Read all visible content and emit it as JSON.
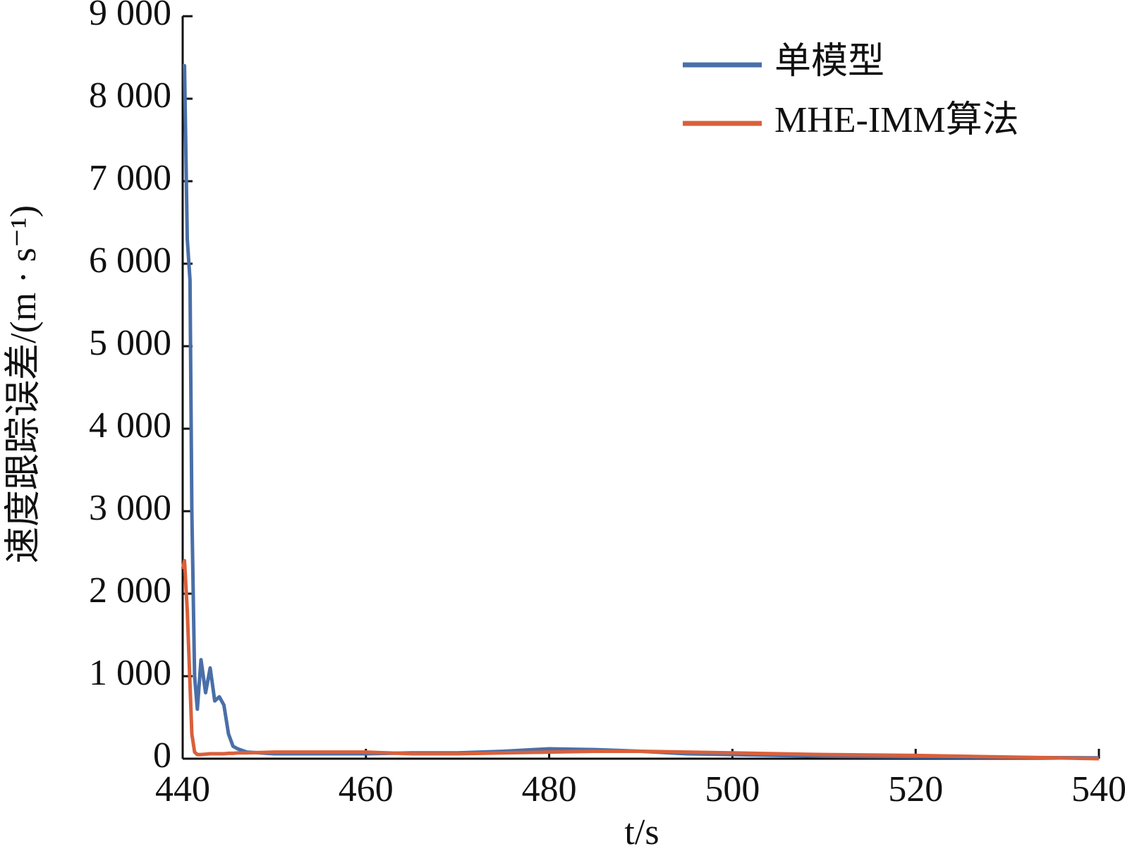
{
  "chart_data": {
    "type": "line",
    "x_label": "t/s",
    "y_label": "速度跟踪误差/(m · s⁻¹)",
    "x": [
      440,
      440.2,
      440.5,
      440.8,
      441,
      441.3,
      441.6,
      442,
      442.5,
      443,
      443.5,
      444,
      444.5,
      445,
      445.5,
      446,
      447,
      450,
      455,
      460,
      465,
      470,
      475,
      480,
      485,
      490,
      495,
      500,
      505,
      510,
      520,
      530,
      540
    ],
    "series": [
      {
        "name": "单模型",
        "color": "#4a6fa8",
        "values": [
          8400,
          8400,
          6300,
          5800,
          3000,
          1000,
          600,
          1200,
          800,
          1100,
          700,
          750,
          650,
          300,
          150,
          120,
          80,
          60,
          60,
          60,
          70,
          70,
          90,
          120,
          110,
          90,
          60,
          50,
          40,
          30,
          20,
          15,
          10
        ]
      },
      {
        "name": "MHE-IMM算法",
        "color": "#d9603b",
        "values": [
          2300,
          2400,
          1800,
          900,
          300,
          80,
          50,
          50,
          55,
          60,
          60,
          60,
          60,
          65,
          65,
          70,
          70,
          80,
          80,
          80,
          60,
          60,
          70,
          80,
          90,
          90,
          80,
          70,
          60,
          50,
          40,
          20,
          0
        ]
      }
    ],
    "xlim": [
      440,
      540
    ],
    "xticks": [
      440,
      460,
      480,
      500,
      520,
      540
    ],
    "ylim": [
      0,
      9000
    ],
    "yticks": [
      0,
      {
        "value": 1000,
        "label": "1 000"
      },
      {
        "value": 2000,
        "label": "2 000"
      },
      {
        "value": 3000,
        "label": "3 000"
      },
      {
        "value": 4000,
        "label": "4 000"
      },
      {
        "value": 5000,
        "label": "5 000"
      },
      {
        "value": 6000,
        "label": "6 000"
      },
      {
        "value": 7000,
        "label": "7 000"
      },
      {
        "value": 8000,
        "label": "8 000"
      },
      {
        "value": 9000,
        "label": "9 000"
      }
    ],
    "grid": false,
    "legend": "upper right"
  }
}
